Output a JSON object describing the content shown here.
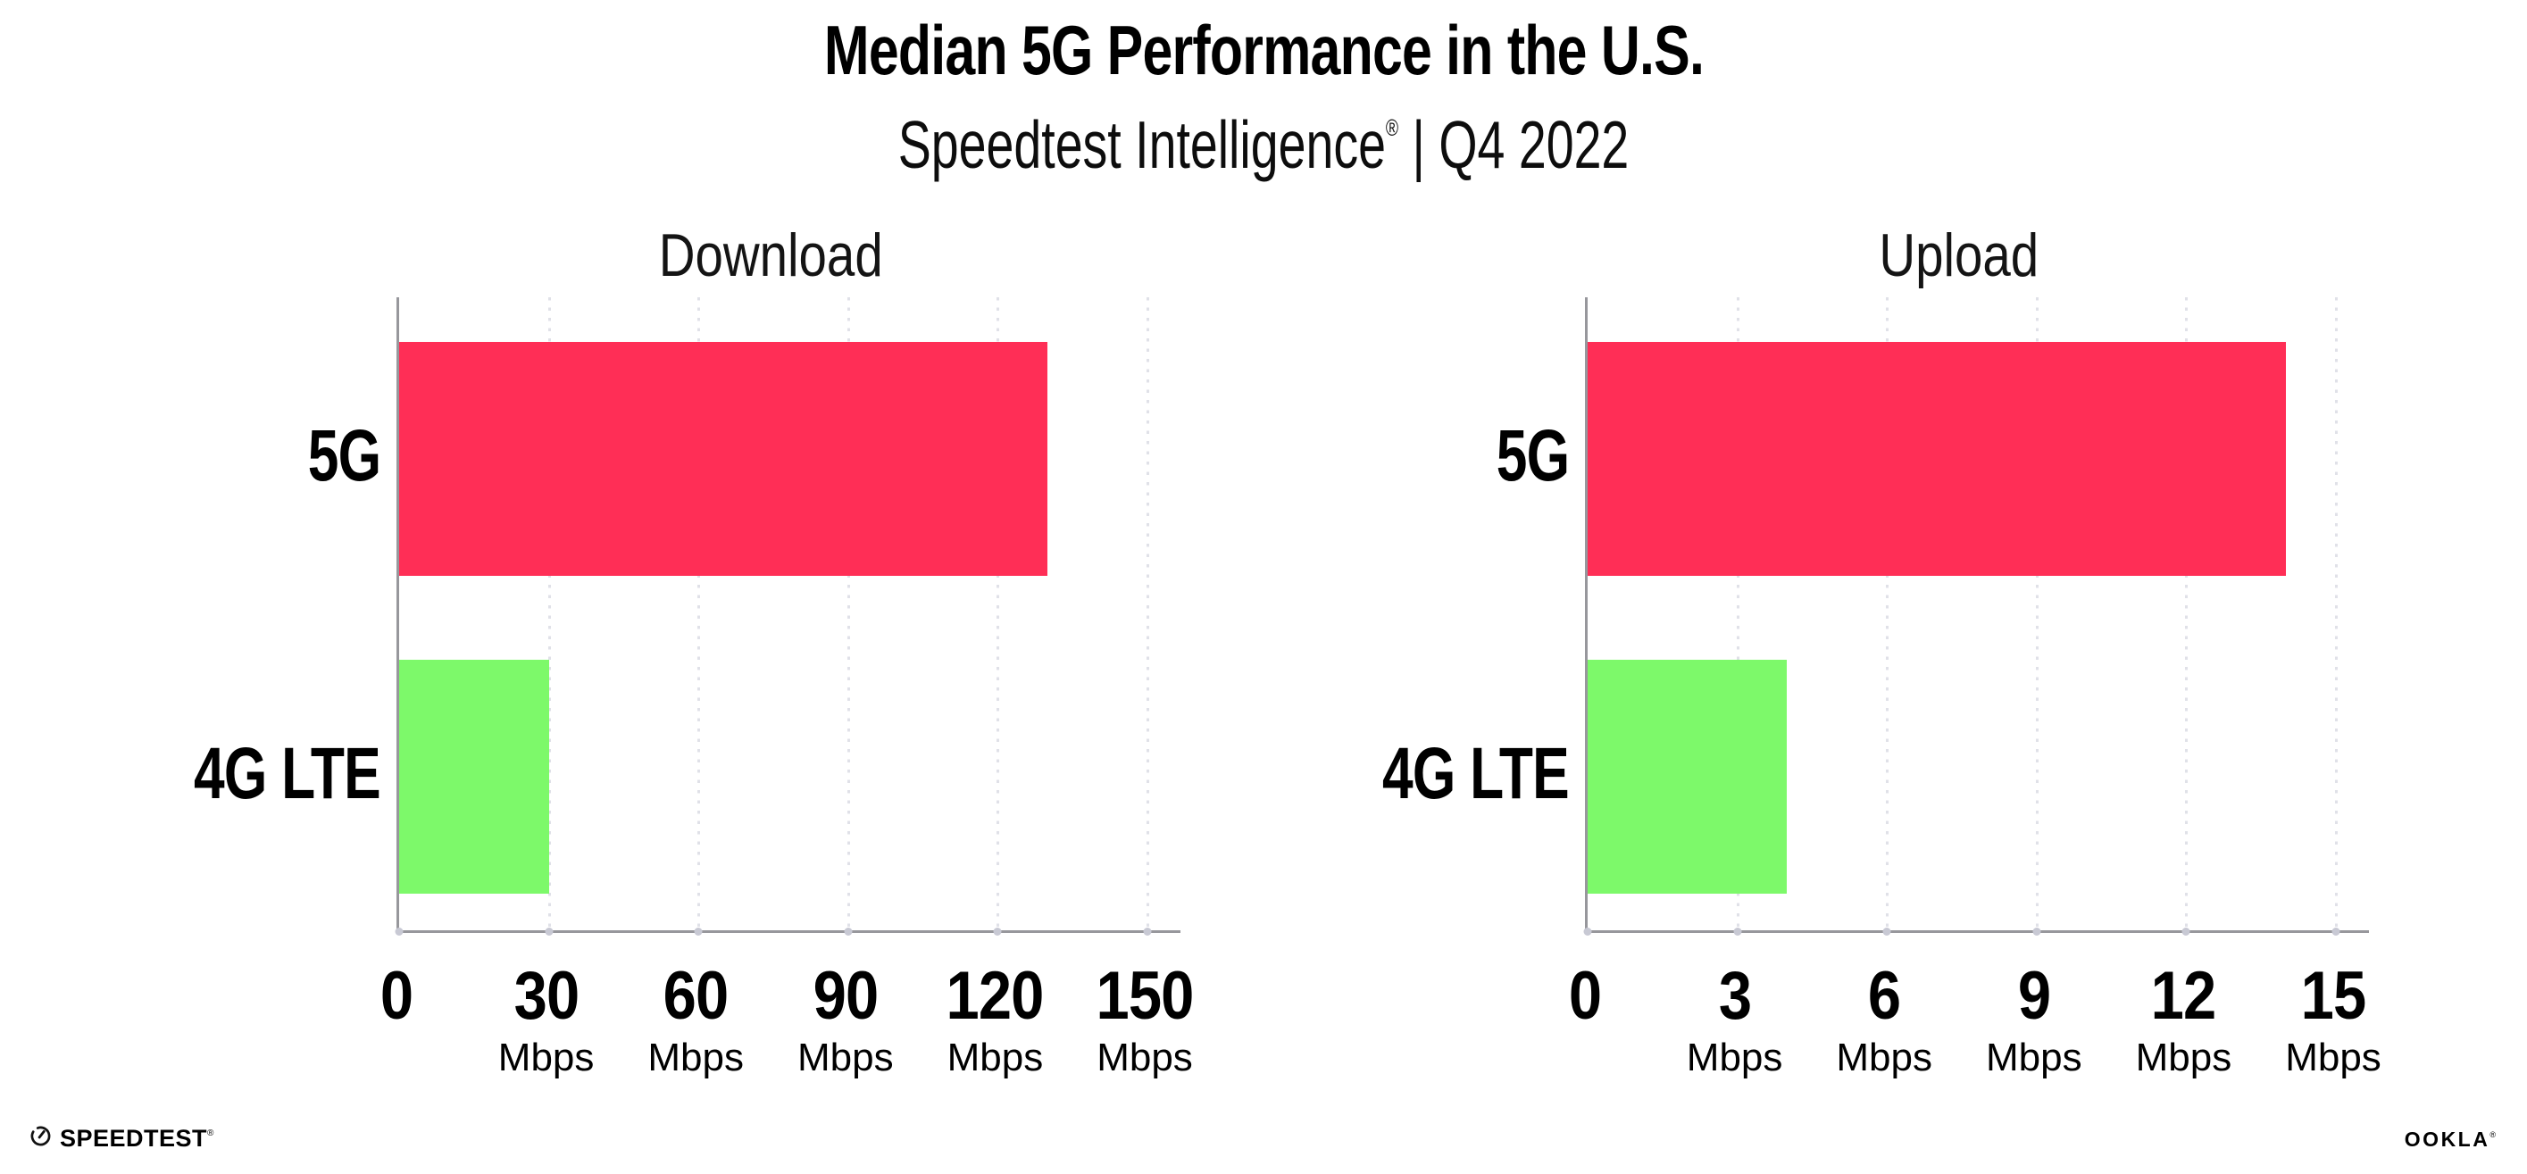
{
  "header": {
    "title": "Median 5G Performance in the U.S.",
    "subtitle_brand": "Speedtest Intelligence",
    "subtitle_registered": "®",
    "subtitle_period": " | Q4 2022"
  },
  "chart_data": [
    {
      "type": "bar",
      "orientation": "horizontal",
      "title": "Download",
      "categories": [
        "5G",
        "4G LTE"
      ],
      "values": [
        130,
        30
      ],
      "value_unit": "Mbps",
      "xlim": [
        0,
        150
      ],
      "xticks": [
        0,
        30,
        60,
        90,
        120,
        150
      ],
      "tick_unit": "Mbps",
      "bar_colors": [
        "#FF2E56",
        "#7DF96A"
      ],
      "grid": "dotted-vertical",
      "legend": "none"
    },
    {
      "type": "bar",
      "orientation": "horizontal",
      "title": "Upload",
      "categories": [
        "5G",
        "4G LTE"
      ],
      "values": [
        14,
        4
      ],
      "value_unit": "Mbps",
      "xlim": [
        0,
        15
      ],
      "xticks": [
        0,
        3,
        6,
        9,
        12,
        15
      ],
      "tick_unit": "Mbps",
      "bar_colors": [
        "#FF2E56",
        "#7DF96A"
      ],
      "grid": "dotted-vertical",
      "legend": "none"
    }
  ],
  "footer": {
    "speedtest_wordmark": "SPEEDTEST",
    "speedtest_registered": "®",
    "ookla_wordmark": "OOKLA",
    "ookla_registered": "®"
  },
  "colors": {
    "bar_5g": "#FF2E56",
    "bar_4g_lte": "#7DF96A",
    "axis_line": "#97979C",
    "grid_dot": "#E0E1E8",
    "tick_dot": "#C8C9D4",
    "text": "#000000"
  }
}
